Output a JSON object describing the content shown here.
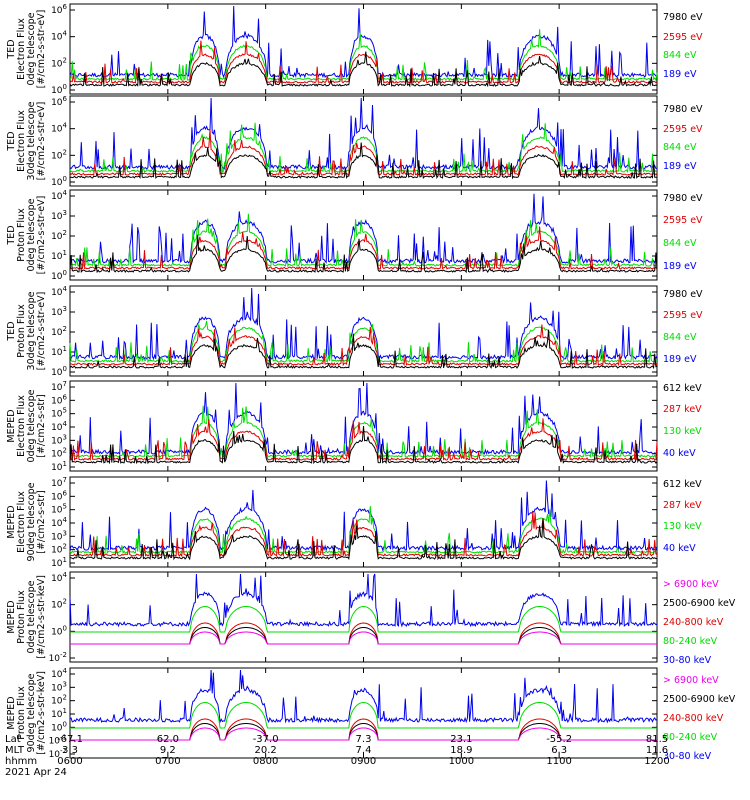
{
  "figure": {
    "date_label": "2021 Apr 24",
    "row_labels": [
      "Lat",
      "MLT",
      "hhmm"
    ],
    "x_ticks": [
      {
        "lat": "-67.1",
        "mlt": "3.3",
        "time": "0600"
      },
      {
        "lat": "62.0",
        "mlt": "9.2",
        "time": "0700"
      },
      {
        "lat": "-37.0",
        "mlt": "20.2",
        "time": "0800"
      },
      {
        "lat": "7.3",
        "mlt": "7.4",
        "time": "0900"
      },
      {
        "lat": "23.1",
        "mlt": "18.9",
        "time": "1000"
      },
      {
        "lat": "-55.2",
        "mlt": "6.3",
        "time": "1100"
      },
      {
        "lat": "81.5",
        "mlt": "11.6",
        "time": "1200"
      }
    ]
  },
  "colors": {
    "black": "#000000",
    "red": "#e00000",
    "green": "#00dd00",
    "blue": "#0000ee",
    "magenta": "#ee00ee"
  },
  "chart_data": [
    {
      "type": "line",
      "ylabel_lines": [
        "TED",
        "Electron Flux",
        "0deg telescope",
        "[#/cm2-s-str-eV]"
      ],
      "y_tick_labels": [
        "10^6",
        "10^4",
        "10^2",
        "10^0"
      ],
      "ylim_exp": [
        0,
        6
      ],
      "series": [
        {
          "name": "7980 eV",
          "color": "black"
        },
        {
          "name": "2595 eV",
          "color": "red"
        },
        {
          "name": "844 eV",
          "color": "green"
        },
        {
          "name": "189 eV",
          "color": "blue"
        }
      ]
    },
    {
      "type": "line",
      "ylabel_lines": [
        "TED",
        "Electron Flux",
        "30deg telescope",
        "[#/cm2-s-str-eV]"
      ],
      "y_tick_labels": [
        "10^6",
        "10^4",
        "10^2",
        "10^0"
      ],
      "ylim_exp": [
        0,
        6
      ],
      "series": [
        {
          "name": "7980 eV",
          "color": "black"
        },
        {
          "name": "2595 eV",
          "color": "red"
        },
        {
          "name": "844 eV",
          "color": "green"
        },
        {
          "name": "189 eV",
          "color": "blue"
        }
      ]
    },
    {
      "type": "line",
      "ylabel_lines": [
        "TED",
        "Proton Flux",
        "0deg telescope",
        "[#/cm2-s-str-eV]"
      ],
      "y_tick_labels": [
        "10^4",
        "10^3",
        "10^2",
        "10^1",
        "10^0"
      ],
      "ylim_exp": [
        0,
        4
      ],
      "series": [
        {
          "name": "7980 eV",
          "color": "black"
        },
        {
          "name": "2595 eV",
          "color": "red"
        },
        {
          "name": "844 eV",
          "color": "green"
        },
        {
          "name": "189 eV",
          "color": "blue"
        }
      ]
    },
    {
      "type": "line",
      "ylabel_lines": [
        "TED",
        "Proton Flux",
        "30deg telescope",
        "[#/cm2-s-str-eV]"
      ],
      "y_tick_labels": [
        "10^4",
        "10^3",
        "10^2",
        "10^1",
        "10^0"
      ],
      "ylim_exp": [
        0,
        4
      ],
      "series": [
        {
          "name": "7980 eV",
          "color": "black"
        },
        {
          "name": "2595 eV",
          "color": "red"
        },
        {
          "name": "844 eV",
          "color": "green"
        },
        {
          "name": "189 eV",
          "color": "blue"
        }
      ]
    },
    {
      "type": "line",
      "ylabel_lines": [
        "MEPED",
        "Electron Flux",
        "0deg telescope",
        "[#/cm2-s-str]"
      ],
      "y_tick_labels": [
        "10^7",
        "10^6",
        "10^5",
        "10^4",
        "10^3",
        "10^2",
        "10^1"
      ],
      "ylim_exp": [
        1,
        7
      ],
      "series": [
        {
          "name": "612 keV",
          "color": "black"
        },
        {
          "name": "287 keV",
          "color": "red"
        },
        {
          "name": "130 keV",
          "color": "green"
        },
        {
          "name": "40 keV",
          "color": "blue"
        }
      ]
    },
    {
      "type": "line",
      "ylabel_lines": [
        "MEPED",
        "Electron Flux",
        "90deg telescope",
        "[#/cm2-s-str]"
      ],
      "y_tick_labels": [
        "10^7",
        "10^6",
        "10^5",
        "10^4",
        "10^3",
        "10^2",
        "10^1"
      ],
      "ylim_exp": [
        1,
        7
      ],
      "series": [
        {
          "name": "612 keV",
          "color": "black"
        },
        {
          "name": "287 keV",
          "color": "red"
        },
        {
          "name": "130 keV",
          "color": "green"
        },
        {
          "name": "40 keV",
          "color": "blue"
        }
      ]
    },
    {
      "type": "line",
      "ylabel_lines": [
        "MEPED",
        "Proton Flux",
        "0deg telescope",
        "[#/cm2-s-str-keV]"
      ],
      "y_tick_labels": [
        "10^4",
        "10^2",
        "10^0",
        "10^-2"
      ],
      "ylim_exp": [
        -3,
        5
      ],
      "series": [
        {
          "name": "> 6900 keV",
          "color": "magenta"
        },
        {
          "name": "2500-6900 keV",
          "color": "black"
        },
        {
          "name": "240-800 keV",
          "color": "red"
        },
        {
          "name": "80-240 keV",
          "color": "green"
        },
        {
          "name": "30-80 keV",
          "color": "blue"
        }
      ]
    },
    {
      "type": "line",
      "ylabel_lines": [
        "MEPED",
        "Proton Flux",
        "90deg telescope",
        "[#/cm2-s-str-keV]"
      ],
      "y_tick_labels": [
        "10^4",
        "10^3",
        "10^2",
        "10^1",
        "10^0",
        "10^-1",
        "10^-2"
      ],
      "ylim_exp": [
        -3,
        5
      ],
      "series": [
        {
          "name": "> 6900 keV",
          "color": "magenta"
        },
        {
          "name": "2500-6900 keV",
          "color": "black"
        },
        {
          "name": "240-800 keV",
          "color": "red"
        },
        {
          "name": "80-240 keV",
          "color": "green"
        },
        {
          "name": "30-80 keV",
          "color": "blue"
        }
      ]
    }
  ]
}
